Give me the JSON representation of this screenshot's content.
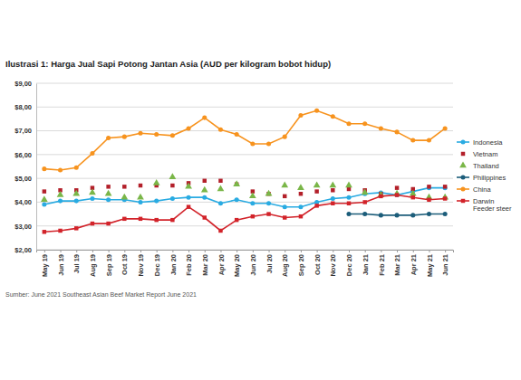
{
  "chart_data": {
    "type": "line",
    "title": "Ilustrasi 1: Harga Jual Sapi Potong Jantan Asia (AUD per kilogram bobot hidup)",
    "source": "Sumber: June 2021 Southeast Asian Beef Market Report June 2021",
    "categories": [
      "May 19",
      "Jun 19",
      "Jul 19",
      "Aug 19",
      "Sep 19",
      "Oct 19",
      "Nov 19",
      "Dec 19",
      "Jan 20",
      "Feb 20",
      "Mar 20",
      "Apr 20",
      "May 20",
      "Jun 20",
      "Jul 20",
      "Aug 20",
      "Sep 20",
      "Oct 20",
      "Nov 20",
      "Dec 20",
      "Jan 21",
      "Feb 21",
      "Mar 21",
      "Apr 21",
      "May 21",
      "Jun 21"
    ],
    "series": [
      {
        "name": "Indonesia",
        "color": "#29abe2",
        "marker": "circle",
        "line_style": "solid",
        "values": [
          3.9,
          4.05,
          4.05,
          4.15,
          4.1,
          4.1,
          4.0,
          4.05,
          4.15,
          4.2,
          4.2,
          3.95,
          4.1,
          3.95,
          3.95,
          3.8,
          3.8,
          4.0,
          4.15,
          4.2,
          4.35,
          4.4,
          4.3,
          4.45,
          4.6,
          4.6
        ]
      },
      {
        "name": "Vietnam",
        "color": "#b3202a",
        "marker": "square",
        "line_style": "none",
        "values": [
          4.45,
          4.5,
          4.5,
          4.6,
          4.65,
          4.65,
          4.7,
          4.7,
          4.7,
          4.8,
          4.9,
          4.9,
          4.75,
          4.45,
          4.35,
          4.25,
          4.35,
          4.45,
          4.5,
          4.55,
          4.5,
          4.35,
          4.6,
          4.55,
          4.65,
          4.65
        ]
      },
      {
        "name": "Thailand",
        "color": "#7ab648",
        "marker": "triangle",
        "line_style": "none",
        "values": [
          4.1,
          4.3,
          4.35,
          4.4,
          4.35,
          4.2,
          4.2,
          4.8,
          5.05,
          4.65,
          4.5,
          4.55,
          4.75,
          4.25,
          4.35,
          4.7,
          4.6,
          4.7,
          4.7,
          4.7,
          4.4,
          4.3,
          4.35,
          4.35,
          4.2,
          4.2
        ]
      },
      {
        "name": "Philippines",
        "color": "#1c5d7a",
        "marker": "circle",
        "line_style": "solid",
        "values": [
          null,
          null,
          null,
          null,
          null,
          null,
          null,
          null,
          null,
          null,
          null,
          null,
          null,
          null,
          null,
          null,
          null,
          null,
          null,
          3.5,
          3.5,
          3.45,
          3.45,
          3.45,
          3.5,
          3.5
        ]
      },
      {
        "name": "China",
        "color": "#f7931e",
        "marker": "circle",
        "line_style": "solid",
        "values": [
          5.4,
          5.35,
          5.45,
          6.05,
          6.7,
          6.75,
          6.9,
          6.85,
          6.8,
          7.1,
          7.55,
          7.05,
          6.85,
          6.45,
          6.45,
          6.75,
          7.65,
          7.85,
          7.6,
          7.3,
          7.3,
          7.1,
          6.95,
          6.6,
          6.6,
          7.1
        ]
      },
      {
        "name": "Darwin Feeder steer",
        "color": "#d2232a",
        "marker": "square",
        "line_style": "solid",
        "values": [
          2.75,
          2.8,
          2.9,
          3.1,
          3.1,
          3.3,
          3.3,
          3.25,
          3.25,
          3.8,
          3.35,
          2.8,
          3.25,
          3.4,
          3.5,
          3.35,
          3.4,
          3.85,
          3.95,
          3.95,
          4.0,
          4.25,
          4.3,
          4.2,
          4.1,
          4.15
        ]
      }
    ],
    "ylim": [
      2,
      9
    ],
    "yticks": [
      {
        "value": 2,
        "label": "$2,00"
      },
      {
        "value": 3,
        "label": "$3,00"
      },
      {
        "value": 4,
        "label": "$4,00"
      },
      {
        "value": 5,
        "label": "$5,00"
      },
      {
        "value": 6,
        "label": "$6,00"
      },
      {
        "value": 7,
        "label": "$7,00"
      },
      {
        "value": 8,
        "label": "$8,00"
      },
      {
        "value": 9,
        "label": "$9,00"
      }
    ],
    "grid": true,
    "legend": "right"
  }
}
